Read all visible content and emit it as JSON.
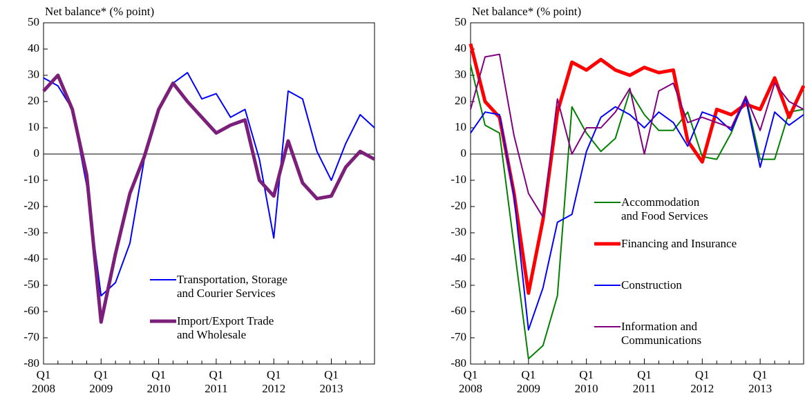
{
  "chart_data": [
    {
      "type": "line",
      "title": "Net balance* (% point)",
      "categories": [
        "Q1\n2008",
        null,
        null,
        null,
        "Q1\n2009",
        null,
        null,
        null,
        "Q1\n2010",
        null,
        null,
        null,
        "Q1\n2011",
        null,
        null,
        null,
        "Q1\n2012",
        null,
        null,
        null,
        "Q1\n2013",
        null,
        null,
        null
      ],
      "series": [
        {
          "name": "Transportation, Storage\nand Courier Services",
          "color": "#0000ff",
          "line_width": 2,
          "values": [
            29,
            26,
            17,
            -12,
            -54,
            -49,
            -34,
            -2,
            17,
            27,
            31,
            21,
            23,
            14,
            17,
            -2,
            -32,
            24,
            21,
            1,
            -10,
            4,
            15,
            10
          ]
        },
        {
          "name": "Import/Export Trade\nand Wholesale",
          "color": "#7b1f7b",
          "line_width": 5,
          "values": [
            24,
            30,
            17,
            -8,
            -64,
            -38,
            -15,
            -1,
            17,
            27,
            20,
            14,
            8,
            11,
            13,
            -10,
            -16,
            5,
            -11,
            -17,
            -16,
            -5,
            1,
            -2
          ]
        }
      ],
      "ylim": [
        -80,
        50
      ],
      "yticks": [
        -80,
        -70,
        -60,
        -50,
        -40,
        -30,
        -20,
        -10,
        0,
        10,
        20,
        30,
        40,
        50
      ],
      "legend": "lower right"
    },
    {
      "type": "line",
      "title": "Net balance* (% point)",
      "categories": [
        "Q1\n2008",
        null,
        null,
        null,
        "Q1\n2009",
        null,
        null,
        null,
        "Q1\n2010",
        null,
        null,
        null,
        "Q1\n2011",
        null,
        null,
        null,
        "Q1\n2012",
        null,
        null,
        null,
        "Q1\n2013",
        null,
        null,
        null
      ],
      "series": [
        {
          "name": "Accommodation\nand Food Services",
          "color": "#008000",
          "line_width": 2,
          "values": [
            34,
            11,
            8,
            -35,
            -78,
            -73,
            -54,
            18,
            8,
            1,
            6,
            24,
            15,
            9,
            9,
            16,
            -1,
            -2,
            8,
            22,
            -2,
            -2,
            16,
            17
          ]
        },
        {
          "name": "Financing and Insurance",
          "color": "#ff0000",
          "line_width": 5,
          "values": [
            42,
            20,
            14,
            -15,
            -53,
            -25,
            16,
            35,
            32,
            36,
            32,
            30,
            33,
            31,
            32,
            5,
            -3,
            17,
            15,
            19,
            17,
            29,
            14,
            26
          ]
        },
        {
          "name": "Construction",
          "color": "#0000ff",
          "line_width": 2,
          "values": [
            8,
            16,
            15,
            -16,
            -67,
            -51,
            -26,
            -23,
            1,
            14,
            18,
            15,
            10,
            16,
            12,
            3,
            16,
            14,
            9,
            21,
            -5,
            16,
            11,
            15
          ]
        },
        {
          "name": "Information and\nCommunications",
          "color": "#800080",
          "line_width": 2,
          "values": [
            17,
            37,
            38,
            7,
            -15,
            -24,
            21,
            0,
            10,
            10,
            16,
            25,
            0,
            24,
            27,
            12,
            14,
            12,
            10,
            22,
            9,
            27,
            20,
            17
          ]
        }
      ],
      "ylim": [
        -80,
        50
      ],
      "yticks": [
        -80,
        -70,
        -60,
        -50,
        -40,
        -30,
        -20,
        -10,
        0,
        10,
        20,
        30,
        40,
        50
      ],
      "legend": "center right"
    }
  ]
}
